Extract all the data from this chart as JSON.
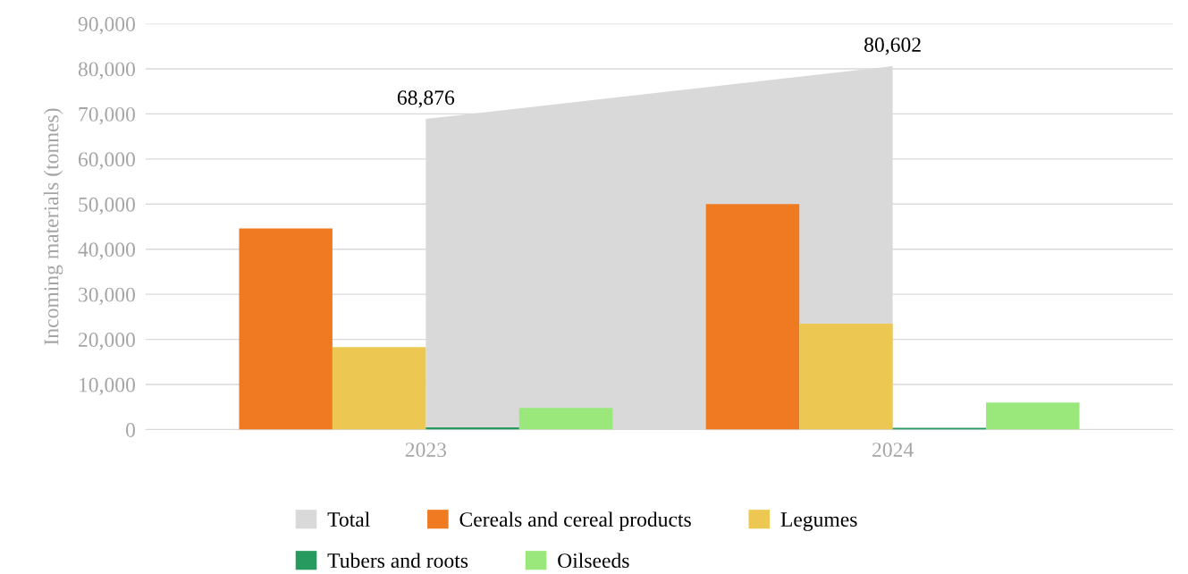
{
  "chart_data": {
    "type": "bar",
    "ylabel": "Incoming materials (tonnes)",
    "categories": [
      "2023",
      "2024"
    ],
    "series": [
      {
        "name": "Total",
        "type": "area",
        "color": "#d9d9d9",
        "values": [
          68876,
          80602
        ],
        "value_labels": [
          "68,876",
          "80,602"
        ]
      },
      {
        "name": "Cereals and cereal products",
        "color": "#ef7a22",
        "values": [
          44600,
          50000
        ]
      },
      {
        "name": "Legumes",
        "color": "#ecc853",
        "values": [
          18300,
          23500
        ]
      },
      {
        "name": "Tubers and roots",
        "color": "#279a5f",
        "values": [
          500,
          400
        ]
      },
      {
        "name": "Oilseeds",
        "color": "#9ae77c",
        "values": [
          4800,
          6000
        ]
      }
    ],
    "ylim": [
      0,
      90000
    ],
    "yticks": [
      0,
      {
        "value": 10000,
        "label": "10,000"
      },
      {
        "value": 20000,
        "label": "20,000"
      },
      {
        "value": 30000,
        "label": "30,000"
      },
      {
        "value": 40000,
        "label": "40,000"
      },
      {
        "value": 50000,
        "label": "50,000"
      },
      {
        "value": 60000,
        "label": "60,000"
      },
      {
        "value": 70000,
        "label": "70,000"
      },
      {
        "value": 80000,
        "label": "80,000"
      },
      {
        "value": 90000,
        "label": "90,000"
      }
    ],
    "grid": "y",
    "legend": "bottom"
  }
}
